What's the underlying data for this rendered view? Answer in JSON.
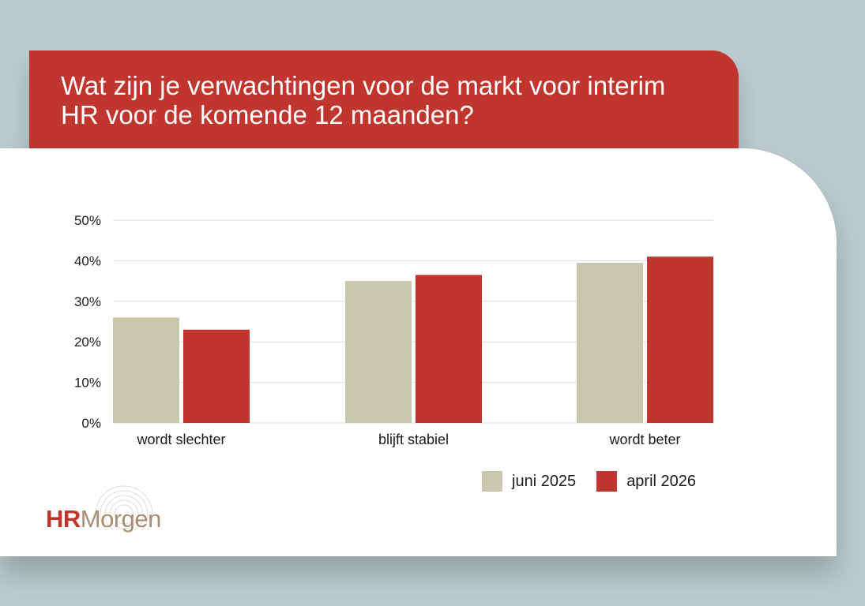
{
  "header": {
    "title": "Wat zijn je verwachtingen voor de markt voor interim HR voor de komende 12 maanden?"
  },
  "colors": {
    "background": "#bccbcf",
    "title_panel": "#c0362f",
    "series_1": "#c9c8ae",
    "series_2": "#c0362f",
    "grid": "#dddddd"
  },
  "chart_data": {
    "type": "bar",
    "categories": [
      "wordt slechter",
      "blijft stabiel",
      "wordt beter"
    ],
    "series": [
      {
        "name": "juni 2025",
        "values": [
          26,
          35,
          39.5
        ]
      },
      {
        "name": "april 2026",
        "values": [
          23,
          36.5,
          41
        ]
      }
    ],
    "ylim": [
      0,
      50
    ],
    "yticks": [
      "0%",
      "10%",
      "20%",
      "30%",
      "40%",
      "50%"
    ],
    "grid": true,
    "legend": "bottom-right"
  },
  "logo": {
    "part1": "HR",
    "part2": "Morgen"
  }
}
